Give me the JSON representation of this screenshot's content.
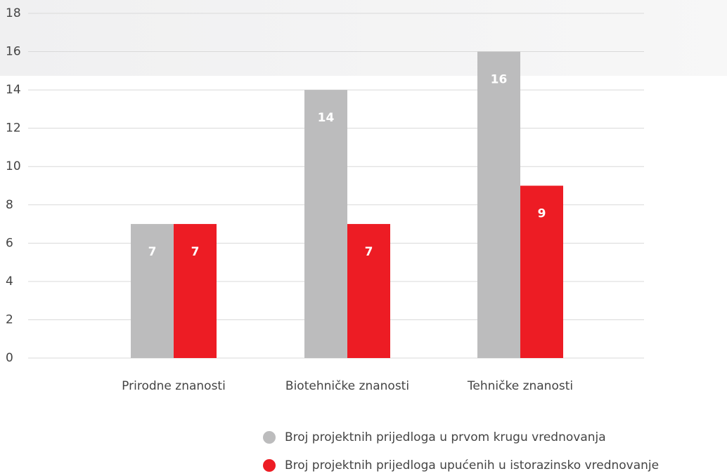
{
  "chart_data": {
    "type": "bar",
    "categories": [
      "Prirodne znanosti",
      "Biotehničke znanosti",
      "Tehničke znanosti"
    ],
    "series": [
      {
        "name": "Broj projektnih prijedloga u prvom krugu vrednovanja",
        "color": "#bcbcbd",
        "values": [
          7,
          14,
          16
        ]
      },
      {
        "name": "Broj projektnih prijedloga upućenih u istorazinsko vrednovanje",
        "color": "#ed1c24",
        "values": [
          7,
          7,
          9
        ]
      }
    ],
    "ylim": [
      0,
      18
    ],
    "yticks": [
      0,
      2,
      4,
      6,
      8,
      10,
      12,
      14,
      16,
      18
    ],
    "grid": true,
    "legend": "bottom"
  }
}
